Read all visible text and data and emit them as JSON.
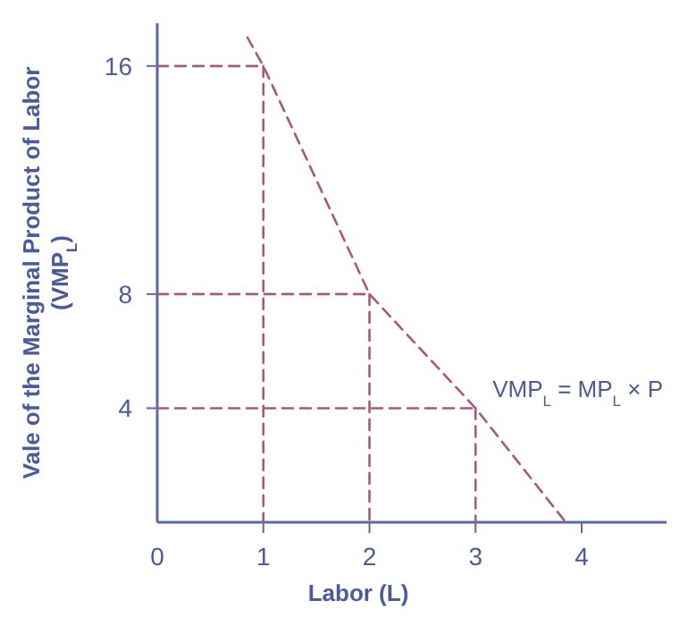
{
  "chart_data": {
    "type": "line",
    "xlabel": "Labor (L)",
    "ylabel": "Vale of the Marginal Product of Labor (VMP$_{L}$)",
    "xlim": [
      0,
      4.8
    ],
    "ylim": [
      0,
      17.5
    ],
    "xticks": [
      0,
      1,
      2,
      3,
      4
    ],
    "yticks": [
      4,
      8,
      16
    ],
    "grid": false,
    "marker": "none",
    "line_style": "dashed",
    "series": [
      {
        "color": "#a8587a",
        "x": [
          0.85,
          1,
          2,
          3,
          3.85
        ],
        "values": [
          17,
          16,
          8,
          4,
          0
        ]
      },
      {
        "color": "#a8587a",
        "x": [
          0,
          1
        ],
        "values": [
          16,
          16
        ]
      },
      {
        "color": "#a8587a",
        "x": [
          1,
          1
        ],
        "values": [
          16,
          0
        ]
      },
      {
        "color": "#a8587a",
        "x": [
          0,
          2
        ],
        "values": [
          8,
          8
        ]
      },
      {
        "color": "#a8587a",
        "x": [
          2,
          2
        ],
        "values": [
          8,
          0
        ]
      },
      {
        "color": "#a8587a",
        "x": [
          0,
          3
        ],
        "values": [
          4,
          4
        ]
      },
      {
        "color": "#a8587a",
        "x": [
          3,
          3
        ],
        "values": [
          4,
          0
        ]
      }
    ],
    "annotations": [
      "VMP$_{L}$ = MP$_{L}$ × P"
    ]
  }
}
